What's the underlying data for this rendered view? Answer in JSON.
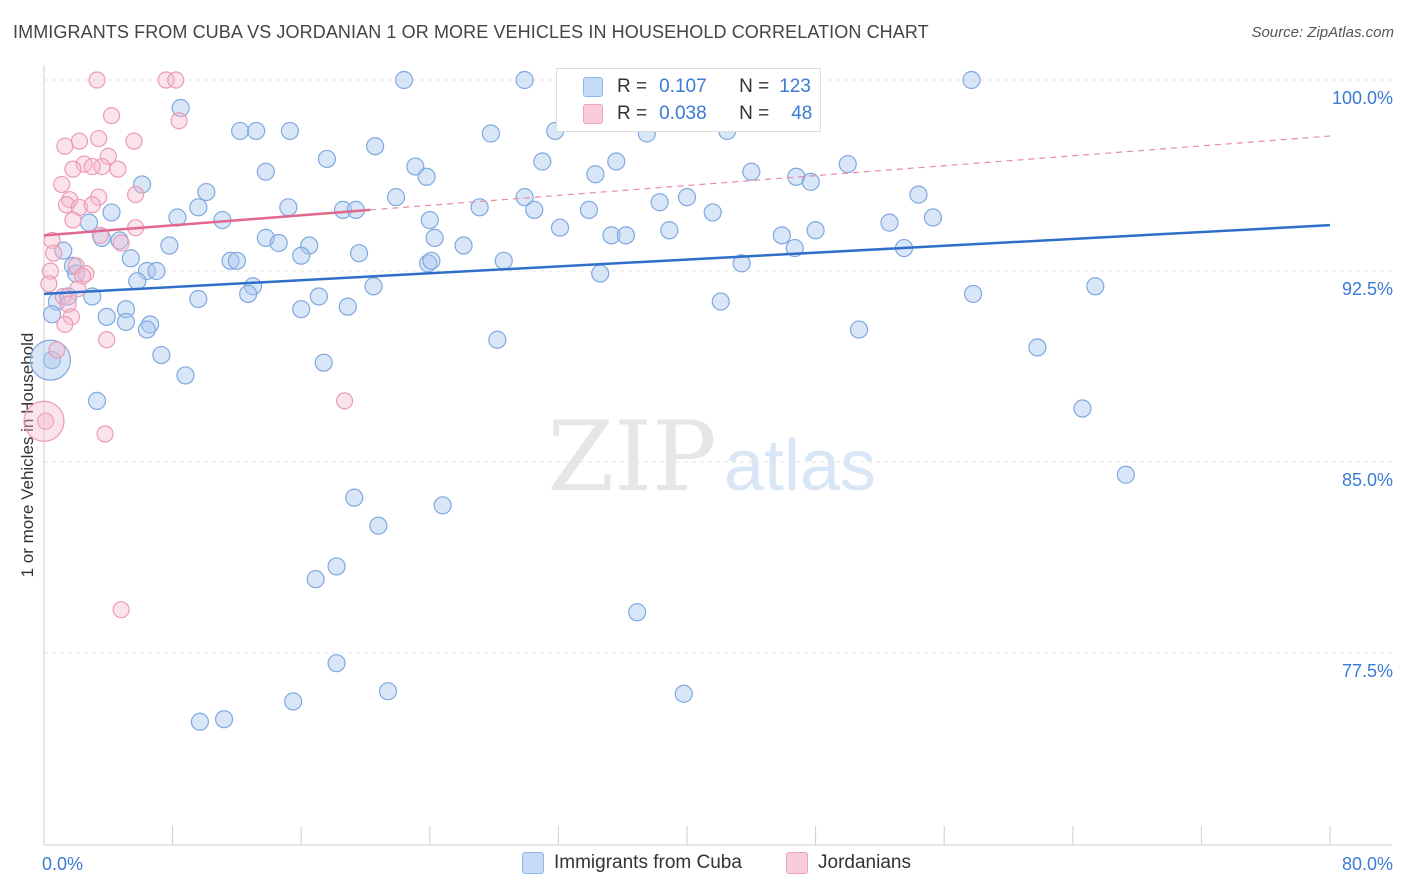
{
  "title": "IMMIGRANTS FROM CUBA VS JORDANIAN 1 OR MORE VEHICLES IN HOUSEHOLD CORRELATION CHART",
  "source": "Source: ZipAtlas.com",
  "watermark": {
    "zip": "ZIP",
    "atlas": "atlas"
  },
  "legend": {
    "r_label": "R =",
    "n_label": "N =",
    "series": [
      {
        "name": "Immigrants from Cuba",
        "r": "0.107",
        "n": "123",
        "color": "#8fb8e8",
        "fill": "#c6dbf5"
      },
      {
        "name": "Jordanians",
        "r": "0.038",
        "n": "48",
        "color": "#f0a0b8",
        "fill": "#f8ccd9"
      }
    ]
  },
  "chart_data": {
    "type": "scatter",
    "title": "IMMIGRANTS FROM CUBA VS JORDANIAN 1 OR MORE VEHICLES IN HOUSEHOLD CORRELATION CHART",
    "xlabel": "",
    "ylabel": "1 or more Vehicles in Household",
    "xlim": [
      0,
      80
    ],
    "ylim": [
      70,
      100.8
    ],
    "x_tick_labels": [
      "0.0%",
      "80.0%"
    ],
    "y_ticks": [
      77.5,
      85.0,
      92.5,
      100.0
    ],
    "y_tick_labels": [
      "77.5%",
      "85.0%",
      "92.5%",
      "100.0%"
    ],
    "grid": true,
    "legend_position": "top-center",
    "series": [
      {
        "name": "Immigrants from Cuba",
        "color": "#4a86d4",
        "trend": {
          "x": [
            0,
            80
          ],
          "y": [
            91.6,
            94.3
          ],
          "style": "solid"
        },
        "points": [
          [
            22.4,
            100.0
          ],
          [
            29.9,
            100.0
          ],
          [
            32.4,
            100.0
          ],
          [
            57.7,
            100.0
          ],
          [
            8.5,
            98.9
          ],
          [
            12.2,
            98.0
          ],
          [
            13.2,
            98.0
          ],
          [
            15.3,
            98.0
          ],
          [
            27.8,
            97.9
          ],
          [
            31.8,
            98.0
          ],
          [
            37.5,
            97.9
          ],
          [
            42.5,
            98.0
          ],
          [
            20.6,
            97.4
          ],
          [
            17.6,
            96.9
          ],
          [
            35.6,
            96.8
          ],
          [
            31.0,
            96.8
          ],
          [
            50.0,
            96.7
          ],
          [
            13.8,
            96.4
          ],
          [
            23.1,
            96.6
          ],
          [
            23.8,
            96.2
          ],
          [
            34.3,
            96.3
          ],
          [
            44.0,
            96.4
          ],
          [
            46.8,
            96.2
          ],
          [
            47.7,
            96.0
          ],
          [
            6.1,
            95.9
          ],
          [
            10.1,
            95.6
          ],
          [
            21.9,
            95.4
          ],
          [
            29.9,
            95.4
          ],
          [
            40.0,
            95.4
          ],
          [
            54.4,
            95.5
          ],
          [
            15.2,
            95.0
          ],
          [
            18.6,
            94.9
          ],
          [
            19.4,
            94.9
          ],
          [
            27.1,
            95.0
          ],
          [
            33.9,
            94.9
          ],
          [
            38.3,
            95.2
          ],
          [
            30.5,
            94.9
          ],
          [
            4.2,
            94.8
          ],
          [
            8.3,
            94.6
          ],
          [
            9.6,
            95.0
          ],
          [
            11.1,
            94.5
          ],
          [
            24.0,
            94.5
          ],
          [
            41.6,
            94.8
          ],
          [
            52.6,
            94.4
          ],
          [
            55.3,
            94.6
          ],
          [
            2.8,
            94.4
          ],
          [
            32.1,
            94.2
          ],
          [
            48.0,
            94.1
          ],
          [
            38.9,
            94.1
          ],
          [
            3.6,
            93.8
          ],
          [
            4.7,
            93.7
          ],
          [
            13.8,
            93.8
          ],
          [
            14.6,
            93.6
          ],
          [
            16.5,
            93.5
          ],
          [
            24.3,
            93.8
          ],
          [
            26.1,
            93.5
          ],
          [
            35.3,
            93.9
          ],
          [
            36.2,
            93.9
          ],
          [
            45.9,
            93.9
          ],
          [
            46.7,
            93.4
          ],
          [
            53.5,
            93.4
          ],
          [
            1.2,
            93.3
          ],
          [
            7.8,
            93.5
          ],
          [
            5.4,
            93.0
          ],
          [
            11.6,
            92.9
          ],
          [
            12.0,
            92.9
          ],
          [
            16.0,
            93.1
          ],
          [
            19.6,
            93.2
          ],
          [
            28.6,
            92.9
          ],
          [
            23.9,
            92.8
          ],
          [
            24.1,
            92.9
          ],
          [
            43.4,
            92.8
          ],
          [
            1.8,
            92.7
          ],
          [
            2.0,
            92.4
          ],
          [
            6.4,
            92.5
          ],
          [
            7.0,
            92.5
          ],
          [
            34.6,
            92.4
          ],
          [
            5.8,
            92.1
          ],
          [
            13.0,
            91.9
          ],
          [
            20.5,
            91.9
          ],
          [
            9.6,
            91.4
          ],
          [
            0.8,
            91.3
          ],
          [
            1.5,
            91.5
          ],
          [
            3.0,
            91.5
          ],
          [
            12.7,
            91.6
          ],
          [
            17.1,
            91.5
          ],
          [
            42.1,
            91.3
          ],
          [
            57.8,
            91.6
          ],
          [
            65.4,
            91.9
          ],
          [
            0.5,
            90.8
          ],
          [
            5.1,
            91.0
          ],
          [
            3.9,
            90.7
          ],
          [
            5.1,
            90.5
          ],
          [
            16.0,
            91.0
          ],
          [
            18.9,
            91.1
          ],
          [
            6.6,
            90.4
          ],
          [
            50.7,
            90.2
          ],
          [
            6.4,
            90.2
          ],
          [
            28.2,
            89.8
          ],
          [
            61.8,
            89.5
          ],
          [
            7.3,
            89.2
          ],
          [
            0.5,
            89.0
          ],
          [
            17.4,
            88.9
          ],
          [
            8.8,
            88.4
          ],
          [
            3.3,
            87.4
          ],
          [
            64.6,
            87.1
          ],
          [
            67.3,
            84.5
          ],
          [
            19.3,
            83.6
          ],
          [
            24.8,
            83.3
          ],
          [
            20.8,
            82.5
          ],
          [
            18.2,
            80.9
          ],
          [
            16.9,
            80.4
          ],
          [
            36.9,
            79.1
          ],
          [
            18.2,
            77.1
          ],
          [
            21.4,
            76.0
          ],
          [
            39.8,
            75.9
          ],
          [
            15.5,
            75.6
          ],
          [
            11.2,
            74.9
          ],
          [
            9.7,
            74.8
          ]
        ]
      },
      {
        "name": "Jordanians",
        "color": "#e0688c",
        "trend_solid": {
          "x": [
            0,
            20.3
          ],
          "y": [
            93.9,
            94.9
          ]
        },
        "trend_dashed": {
          "x": [
            20.3,
            80
          ],
          "y": [
            94.9,
            97.8
          ]
        },
        "points": [
          [
            3.3,
            100.0
          ],
          [
            7.6,
            100.0
          ],
          [
            8.2,
            100.0
          ],
          [
            4.2,
            98.6
          ],
          [
            8.4,
            98.4
          ],
          [
            2.2,
            97.6
          ],
          [
            3.4,
            97.7
          ],
          [
            5.6,
            97.6
          ],
          [
            1.3,
            97.4
          ],
          [
            4.0,
            97.0
          ],
          [
            2.5,
            96.7
          ],
          [
            1.8,
            96.5
          ],
          [
            3.6,
            96.6
          ],
          [
            3.0,
            96.6
          ],
          [
            4.6,
            96.5
          ],
          [
            1.1,
            95.9
          ],
          [
            3.4,
            95.4
          ],
          [
            5.7,
            95.5
          ],
          [
            1.6,
            95.3
          ],
          [
            1.4,
            95.1
          ],
          [
            2.2,
            95.0
          ],
          [
            3.0,
            95.1
          ],
          [
            1.8,
            94.5
          ],
          [
            5.7,
            94.2
          ],
          [
            3.5,
            93.9
          ],
          [
            4.8,
            93.6
          ],
          [
            0.5,
            93.7
          ],
          [
            0.6,
            93.2
          ],
          [
            2.0,
            92.7
          ],
          [
            0.4,
            92.5
          ],
          [
            2.6,
            92.4
          ],
          [
            2.4,
            92.3
          ],
          [
            0.3,
            92.0
          ],
          [
            2.1,
            91.8
          ],
          [
            1.2,
            91.5
          ],
          [
            1.5,
            91.2
          ],
          [
            1.7,
            90.7
          ],
          [
            1.3,
            90.4
          ],
          [
            3.9,
            89.8
          ],
          [
            0.8,
            89.4
          ],
          [
            18.7,
            87.4
          ],
          [
            0.1,
            86.6
          ],
          [
            3.8,
            86.1
          ],
          [
            4.8,
            79.2
          ]
        ]
      }
    ],
    "large_points": [
      {
        "series": "Immigrants from Cuba",
        "x": 0.4,
        "y": 89.0
      },
      {
        "series": "Jordanians",
        "x": 0.0,
        "y": 86.6
      }
    ]
  }
}
